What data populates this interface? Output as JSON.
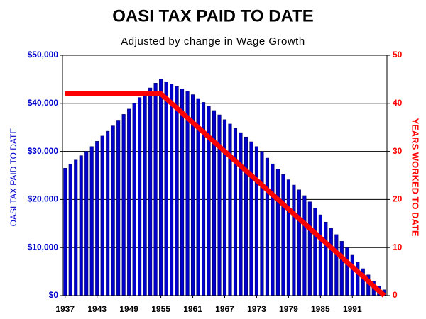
{
  "chart_data": {
    "type": "bar",
    "title": "OASI TAX PAID TO DATE",
    "subtitle": "Adjusted by change in Wage Growth",
    "y_label": "OASI TAX PAID TO DATE",
    "y2_label": "YEARS WORKED TO DATE",
    "categories": [
      "1937",
      null,
      null,
      null,
      null,
      null,
      "1943",
      null,
      null,
      null,
      null,
      null,
      "1949",
      null,
      null,
      null,
      null,
      null,
      "1955",
      null,
      null,
      null,
      null,
      null,
      "1961",
      null,
      null,
      null,
      null,
      null,
      "1967",
      null,
      null,
      null,
      null,
      null,
      "1973",
      null,
      null,
      null,
      null,
      null,
      "1979",
      null,
      null,
      null,
      null,
      null,
      "1985",
      null,
      null,
      null,
      null,
      null,
      "1991",
      null,
      null,
      null,
      null,
      null,
      null
    ],
    "series": [
      {
        "name": "OASI TAX PAID TO DATE",
        "color": "#0000cc",
        "values": [
          26500,
          27300,
          28200,
          29100,
          30000,
          31000,
          32100,
          33200,
          34200,
          35300,
          36500,
          37700,
          38800,
          40000,
          41200,
          42300,
          43200,
          44200,
          45000,
          44500,
          44000,
          43500,
          43000,
          42500,
          41800,
          41000,
          40200,
          39400,
          38500,
          37600,
          36600,
          35700,
          34800,
          33900,
          33000,
          32000,
          31000,
          30000,
          28600,
          27400,
          26300,
          25200,
          24100,
          23000,
          22000,
          20800,
          19500,
          18200,
          16800,
          15300,
          14000,
          12700,
          11300,
          10000,
          8400,
          7000,
          5600,
          4300,
          3000,
          2000,
          1200
        ]
      },
      {
        "name": "YEARS WORKED TO DATE",
        "color": "#ff0000",
        "axis": "y2",
        "values": [
          42,
          42,
          42,
          42,
          42,
          42,
          42,
          42,
          42,
          42,
          42,
          42,
          42,
          42,
          42,
          42,
          42,
          42,
          42,
          41,
          40,
          39,
          38,
          37,
          36,
          35,
          34,
          33,
          32,
          31,
          30,
          29,
          28,
          27,
          26,
          25,
          24,
          23,
          22,
          21,
          20,
          19,
          18,
          17,
          16,
          15,
          14,
          13,
          12,
          11,
          10,
          9,
          8,
          7,
          6,
          5,
          4,
          3,
          2,
          1,
          0
        ]
      }
    ],
    "ylim": [
      0,
      50000
    ],
    "yticks": [
      {
        "value": 0,
        "label": "$0"
      },
      {
        "value": 10000,
        "label": "$10,000"
      },
      {
        "value": 20000,
        "label": "$20,000"
      },
      {
        "value": 30000,
        "label": "$30,000"
      },
      {
        "value": 40000,
        "label": "$40,000"
      },
      {
        "value": 50000,
        "label": "$50,000"
      }
    ],
    "y2lim": [
      0,
      50
    ],
    "y2ticks": [
      0,
      10,
      20,
      30,
      40,
      50
    ],
    "grid": true
  }
}
